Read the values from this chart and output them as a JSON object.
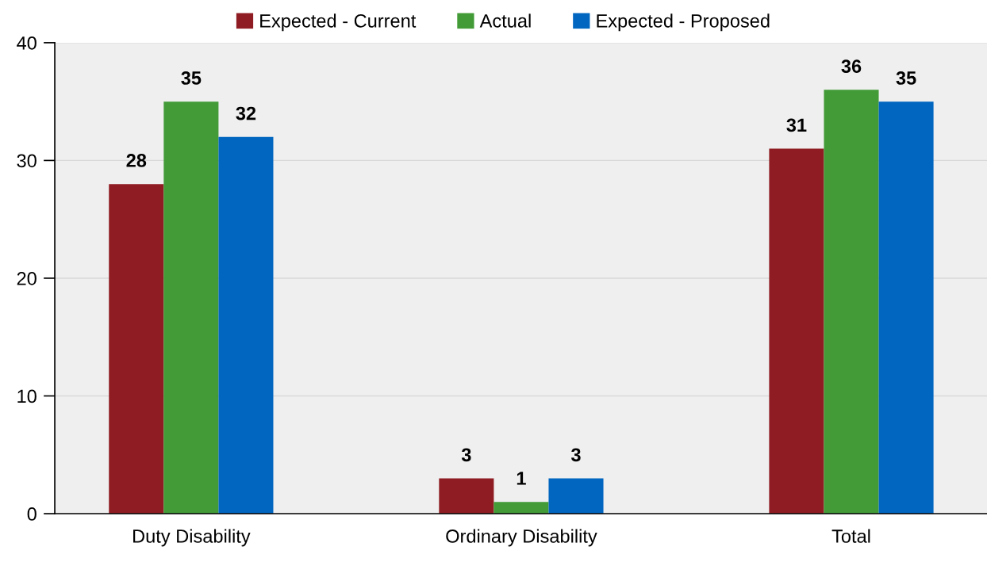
{
  "chart_data": {
    "type": "bar",
    "categories": [
      "Duty Disability",
      "Ordinary Disability",
      "Total"
    ],
    "series": [
      {
        "name": "Expected - Current",
        "color": "#8f1c22",
        "values": [
          28,
          3,
          31
        ]
      },
      {
        "name": "Actual",
        "color": "#429b37",
        "values": [
          35,
          1,
          36
        ]
      },
      {
        "name": "Expected - Proposed",
        "color": "#0066c0",
        "values": [
          32,
          3,
          35
        ]
      }
    ],
    "ylim": [
      0,
      40
    ],
    "yticks": [
      0,
      10,
      20,
      30,
      40
    ],
    "grid": "y",
    "legend": "top",
    "data_labels": true
  }
}
